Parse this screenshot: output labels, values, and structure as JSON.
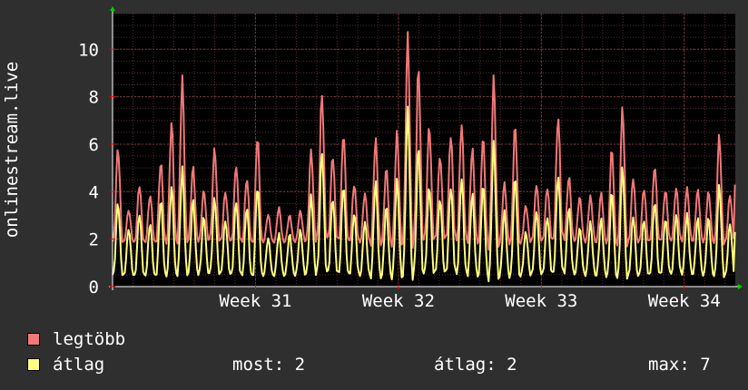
{
  "chart_data": {
    "type": "line",
    "ylabel": "onlinestream.live",
    "ylim": [
      0,
      11.5
    ],
    "yticks": [
      0,
      2,
      4,
      6,
      8,
      10
    ],
    "xticks": [
      {
        "label": "Week 31",
        "day": 7
      },
      {
        "label": "Week 32",
        "day": 14
      },
      {
        "label": "Week 33",
        "day": 21
      },
      {
        "label": "Week 34",
        "day": 28
      }
    ],
    "xlim_days": [
      0,
      30.5
    ],
    "grid": true,
    "colors": {
      "background": "#2f2f2f",
      "plot": "#000000",
      "grid": "#5a2f2f",
      "axis": "#ffffff",
      "arrow": "#00cc00"
    },
    "series": [
      {
        "name": "legtöbb",
        "color": "#f07878",
        "daily_peaks": [
          5.8,
          3.2,
          4.2,
          3.8,
          5.2,
          6.9,
          8.8,
          5.1,
          4.1,
          5.9,
          4.0,
          5.1,
          4.5,
          6.2,
          3.0,
          3.3,
          3.0,
          3.2,
          5.8,
          8.3,
          5.6,
          6.5,
          4.3,
          3.9,
          6.1,
          4.9,
          6.4,
          10.5,
          9.3,
          6.9,
          5.6,
          6.5,
          6.9,
          5.8,
          6.2,
          8.6,
          4.3,
          6.7,
          3.4,
          4.3,
          4.2,
          7.3,
          4.7,
          3.8,
          3.8,
          3.9,
          5.7,
          7.4,
          4.5,
          4.1,
          5.1,
          4.1,
          4.2,
          4.2,
          4.1,
          4.0,
          6.3,
          3.8
        ],
        "base": 1.9,
        "last": 4.3
      },
      {
        "name": "átlag",
        "color": "#ffff80",
        "daily_peaks": [
          3.5,
          2.4,
          3.0,
          2.6,
          3.6,
          4.2,
          5.0,
          3.7,
          3.0,
          3.8,
          2.8,
          3.6,
          3.3,
          4.1,
          2.0,
          2.2,
          2.2,
          2.4,
          3.9,
          5.8,
          3.8,
          4.3,
          3.1,
          2.7,
          4.3,
          3.3,
          4.4,
          7.4,
          5.9,
          4.3,
          3.8,
          4.3,
          4.6,
          3.9,
          4.2,
          5.9,
          3.1,
          4.5,
          2.3,
          3.2,
          3.0,
          4.8,
          3.4,
          2.5,
          2.7,
          2.8,
          3.9,
          4.9,
          2.9,
          2.8,
          3.6,
          2.9,
          3.1,
          3.1,
          2.9,
          2.9,
          4.2,
          2.6
        ],
        "base": 0.5,
        "last": 2.3
      }
    ]
  },
  "legend": {
    "max_label": "legtöbb",
    "avg_label": "átlag",
    "max_color": "#f07878",
    "avg_color": "#ffff80"
  },
  "stats": {
    "now": "most: 2",
    "avg": "átlag: 2",
    "max": "max: 7"
  }
}
